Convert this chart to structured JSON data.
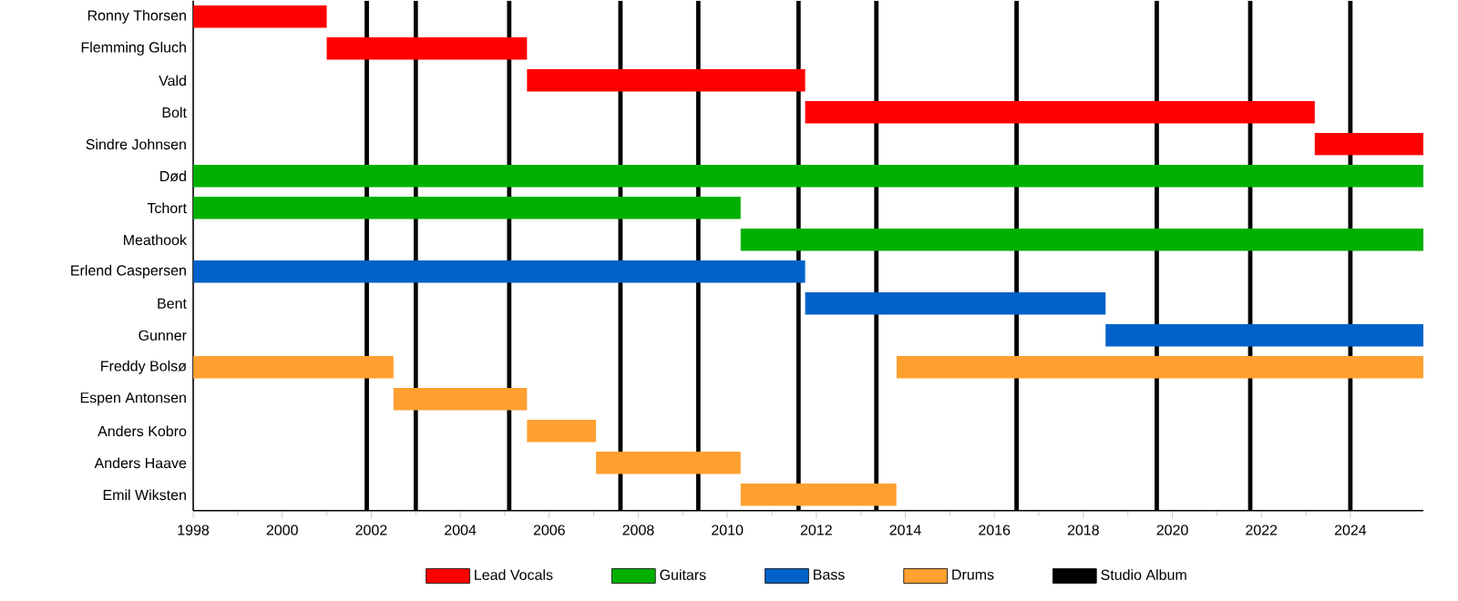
{
  "chart_data": {
    "type": "bar",
    "orientation": "horizontal",
    "legend": "bottom",
    "grid": false,
    "categories": [
      "Ronny Thorsen",
      "Flemming Gluch",
      "Vald",
      "Bolt",
      "Sindre Johnsen",
      "Død",
      "Tchort",
      "Meathook",
      "Erlend Caspersen",
      "Bent",
      "Gunner",
      "Freddy Bolsø",
      "Espen Antonsen",
      "Anders Kobro",
      "Anders Haave",
      "Emil Wiksten"
    ],
    "xlim": [
      1998,
      2025.64
    ],
    "xticks": [
      1998,
      2000,
      2002,
      2004,
      2006,
      2008,
      2010,
      2012,
      2014,
      2016,
      2018,
      2020,
      2022,
      2024
    ],
    "series": [
      {
        "name": "Lead Vocals",
        "color": "#ff0000",
        "base": [
          1998,
          2001,
          2005.5,
          2011.75,
          2023.2,
          null,
          null,
          null,
          null,
          null,
          null,
          null,
          null,
          null,
          null,
          null
        ],
        "values": [
          3.0,
          4.5,
          6.25,
          11.45,
          2.44,
          null,
          null,
          null,
          null,
          null,
          null,
          null,
          null,
          null,
          null,
          null
        ]
      },
      {
        "name": "Guitars",
        "color": "#00b000",
        "base": [
          null,
          null,
          null,
          null,
          null,
          1998,
          1998,
          2010.3,
          null,
          null,
          null,
          null,
          null,
          null,
          null,
          null
        ],
        "values": [
          null,
          null,
          null,
          null,
          null,
          27.64,
          12.3,
          15.34,
          null,
          null,
          null,
          null,
          null,
          null,
          null,
          null
        ]
      },
      {
        "name": "Bass",
        "color": "#0062c8",
        "base": [
          null,
          null,
          null,
          null,
          null,
          null,
          null,
          null,
          1998,
          2011.75,
          2018.5,
          null,
          null,
          null,
          null,
          null
        ],
        "values": [
          null,
          null,
          null,
          null,
          null,
          null,
          null,
          null,
          13.75,
          6.75,
          7.14,
          null,
          null,
          null,
          null,
          null
        ]
      },
      {
        "name": "Drums",
        "color": "#ffa030",
        "base": [
          null,
          null,
          null,
          null,
          null,
          null,
          null,
          null,
          null,
          null,
          null,
          1998,
          2002.5,
          2005.5,
          2007.05,
          2010.3
        ],
        "values": [
          null,
          null,
          null,
          null,
          null,
          null,
          null,
          null,
          null,
          null,
          null,
          4.5,
          3.0,
          1.55,
          3.25,
          3.5
        ]
      },
      {
        "color": "#ffa030",
        "base": [
          null,
          null,
          null,
          null,
          null,
          null,
          null,
          null,
          null,
          null,
          null,
          2013.8,
          null,
          null,
          null,
          null
        ],
        "values": [
          null,
          null,
          null,
          null,
          null,
          null,
          null,
          null,
          null,
          null,
          null,
          11.84,
          null,
          null,
          null,
          null
        ]
      }
    ],
    "ref_lines": [
      {
        "axis": "x",
        "value": 2001.9,
        "label": "Studio Album",
        "color": "#000000"
      },
      {
        "axis": "x",
        "value": 2003.0,
        "color": "#000000"
      },
      {
        "axis": "x",
        "value": 2005.1,
        "color": "#000000"
      },
      {
        "axis": "x",
        "value": 2007.6,
        "color": "#000000"
      },
      {
        "axis": "x",
        "value": 2009.35,
        "color": "#000000"
      },
      {
        "axis": "x",
        "value": 2011.6,
        "color": "#000000"
      },
      {
        "axis": "x",
        "value": 2013.35,
        "color": "#000000"
      },
      {
        "axis": "x",
        "value": 2016.5,
        "color": "#000000"
      },
      {
        "axis": "x",
        "value": 2019.65,
        "color": "#000000"
      },
      {
        "axis": "x",
        "value": 2021.75,
        "color": "#000000"
      },
      {
        "axis": "x",
        "value": 2024.0,
        "color": "#000000"
      }
    ]
  }
}
